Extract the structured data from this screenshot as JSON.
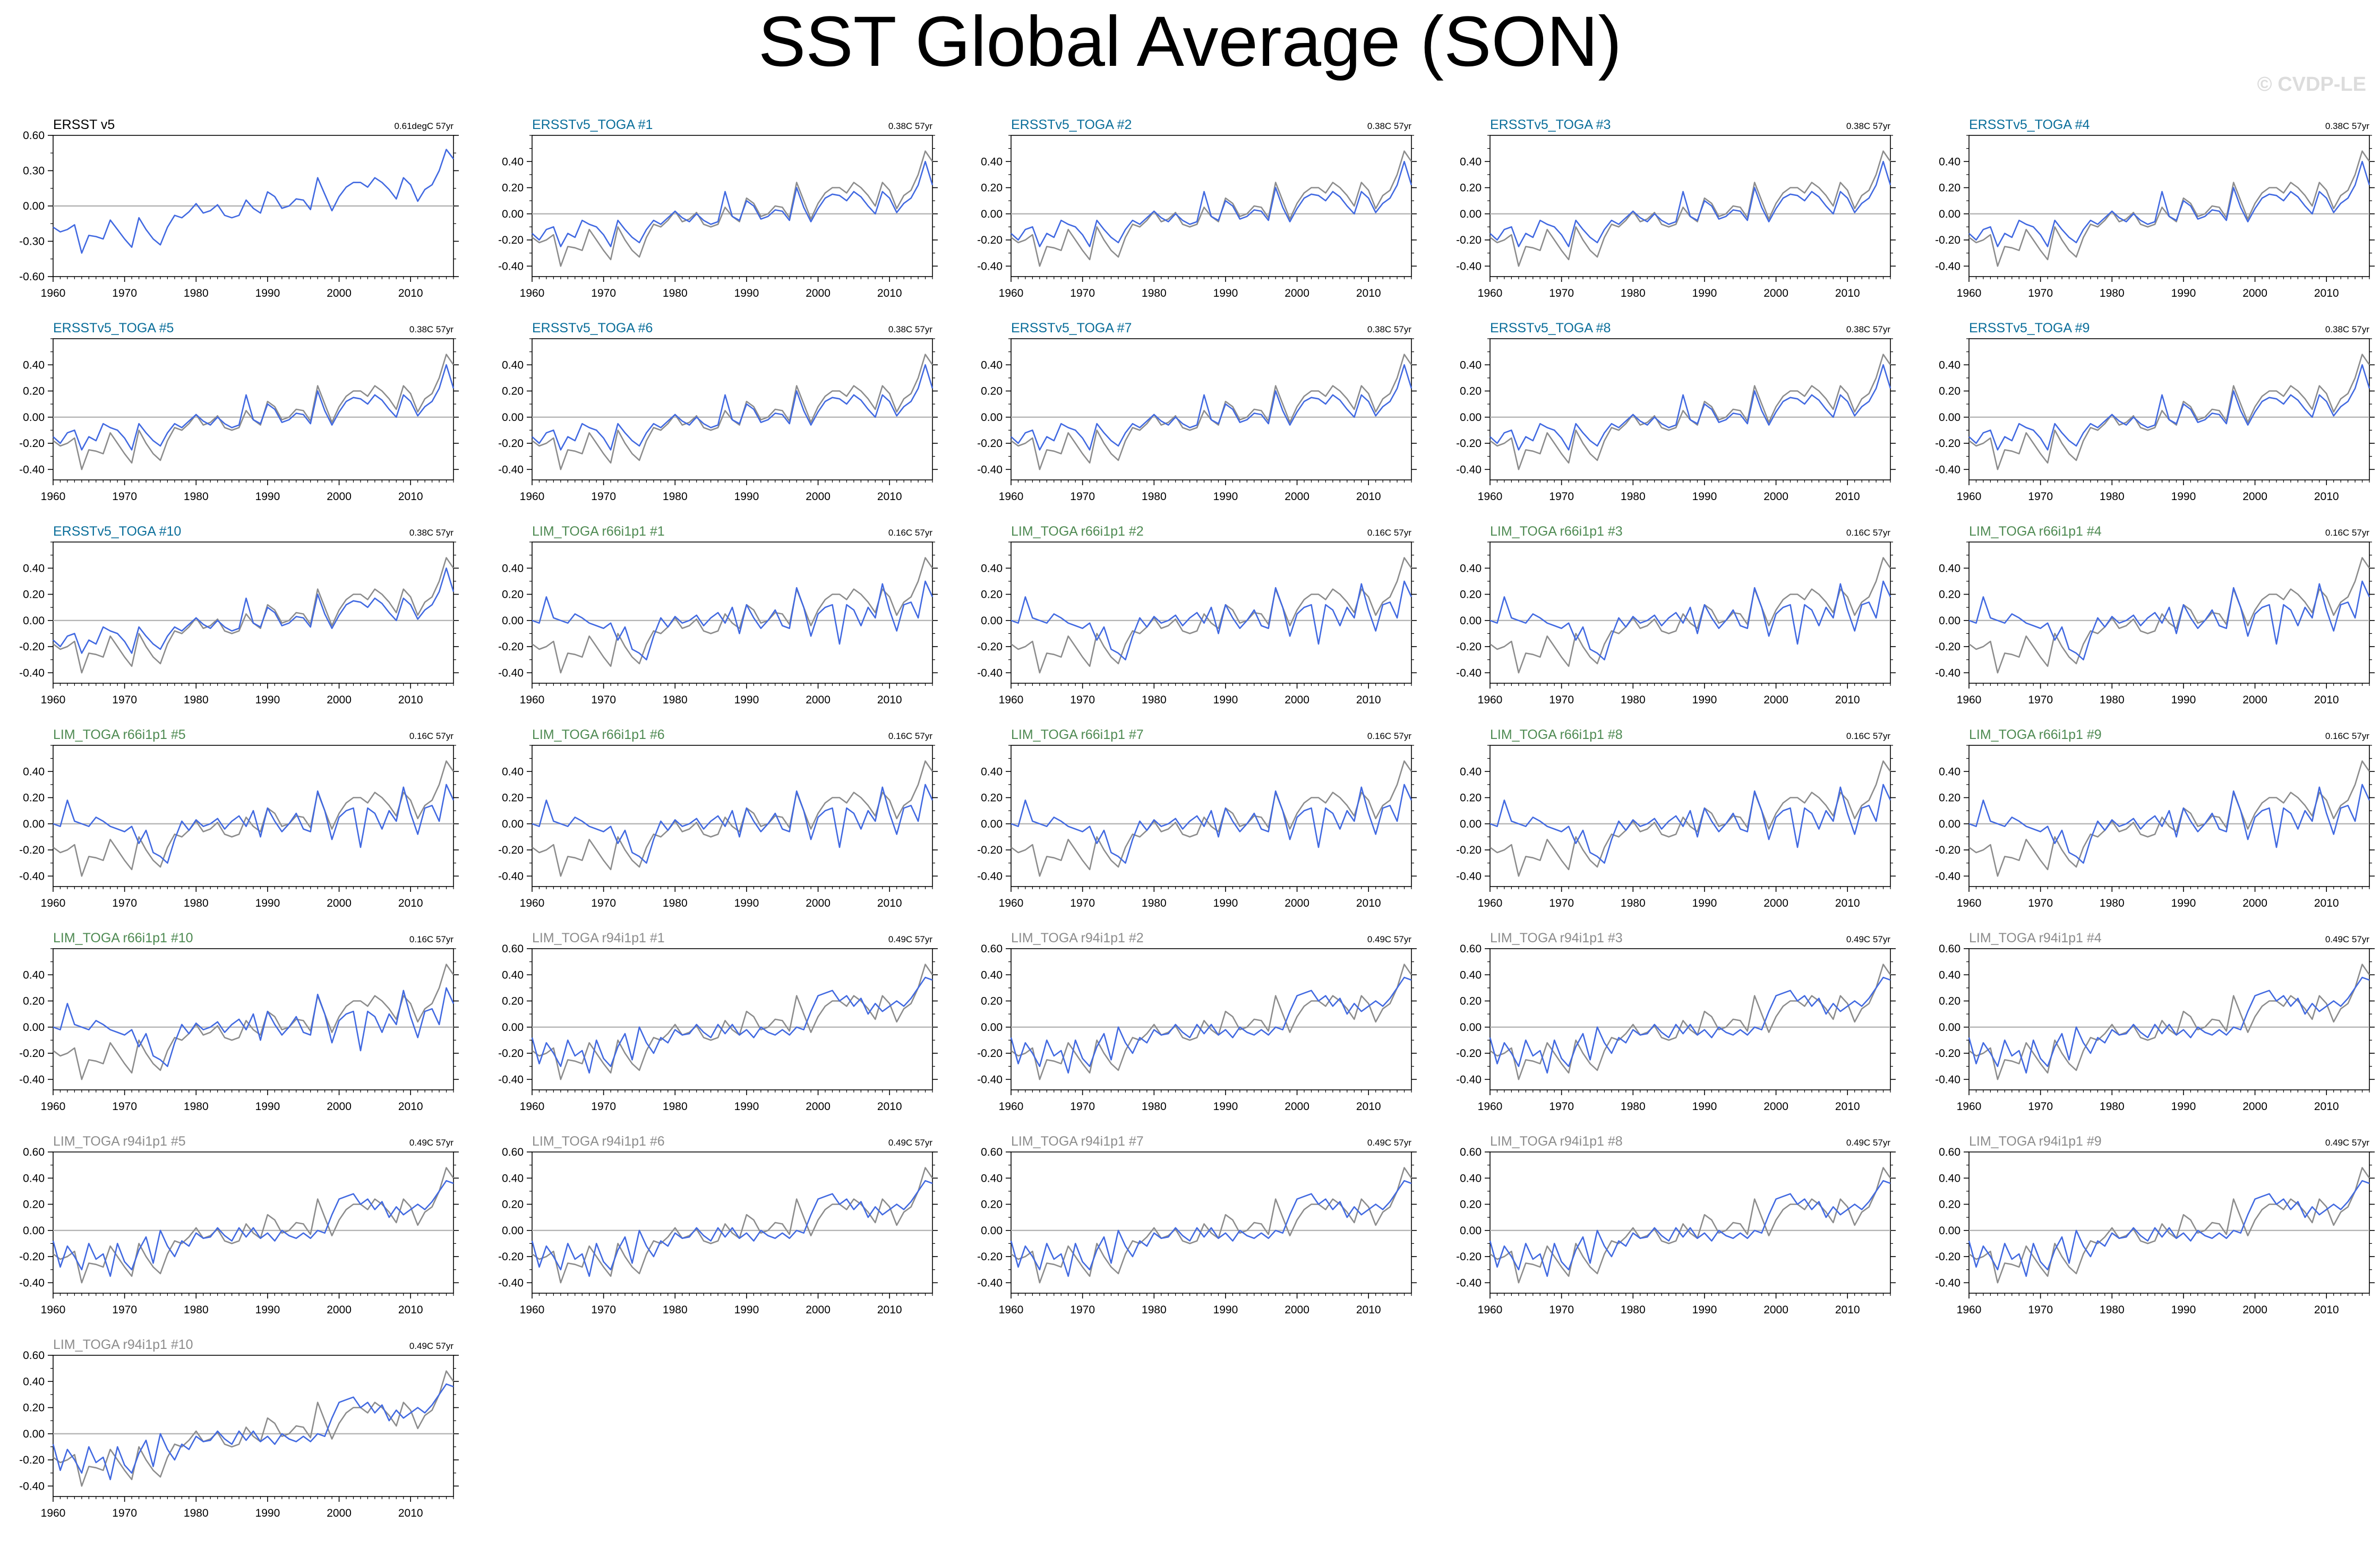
{
  "figure": {
    "title": "SST Global Average (SON)",
    "watermark": "© CVDP-LE"
  },
  "colors": {
    "model_line": "#4169e1",
    "obs_line": "#8c8c8c",
    "obs_only_line": "#4169e1",
    "zero_line": "#b4b4b4",
    "label_obs": "#000000",
    "label_ersst_toga": "#0a6e9a",
    "label_r66": "#4e8a52",
    "label_r94": "#8c8c8c"
  },
  "chart_data": {
    "type": "line",
    "layout": "small-multiples grid, 5 columns",
    "x": [
      1960,
      1961,
      1962,
      1963,
      1964,
      1965,
      1966,
      1967,
      1968,
      1969,
      1970,
      1971,
      1972,
      1973,
      1974,
      1975,
      1976,
      1977,
      1978,
      1979,
      1980,
      1981,
      1982,
      1983,
      1984,
      1985,
      1986,
      1987,
      1988,
      1989,
      1990,
      1991,
      1992,
      1993,
      1994,
      1995,
      1996,
      1997,
      1998,
      1999,
      2000,
      2001,
      2002,
      2003,
      2004,
      2005,
      2006,
      2007,
      2008,
      2009,
      2010,
      2011,
      2012,
      2013,
      2014,
      2015,
      2016
    ],
    "xticks": [
      "1960",
      "1970",
      "1980",
      "1990",
      "2000",
      "2010"
    ],
    "xlim": [
      1960,
      2016
    ],
    "observations": {
      "name": "ERSST v5",
      "values": [
        -0.18,
        -0.22,
        -0.2,
        -0.16,
        -0.4,
        -0.25,
        -0.26,
        -0.28,
        -0.12,
        -0.2,
        -0.28,
        -0.35,
        -0.1,
        -0.2,
        -0.28,
        -0.33,
        -0.18,
        -0.08,
        -0.1,
        -0.05,
        0.02,
        -0.06,
        -0.04,
        0.01,
        -0.08,
        -0.1,
        -0.08,
        0.05,
        -0.02,
        -0.06,
        0.12,
        0.08,
        -0.02,
        0.0,
        0.06,
        0.05,
        -0.03,
        0.24,
        0.1,
        -0.04,
        0.08,
        0.16,
        0.2,
        0.2,
        0.16,
        0.24,
        0.2,
        0.14,
        0.06,
        0.24,
        0.18,
        0.04,
        0.14,
        0.18,
        0.3,
        0.48,
        0.4
      ]
    },
    "panels": [
      {
        "label": "ERSST v5",
        "group": "obs",
        "trend": "0.61degC 57yr",
        "ylim": [
          -0.6,
          0.6
        ],
        "yticks": [
          "0.60",
          "0.30",
          "0.00",
          "-0.30",
          "-0.60"
        ]
      },
      {
        "label": "ERSSTv5_TOGA #1",
        "group": "ersst_toga",
        "trend": "0.38C 57yr",
        "ylim": [
          -0.48,
          0.6
        ],
        "yticks": [
          "0.40",
          "0.20",
          "0.00",
          "-0.20",
          "-0.40"
        ]
      },
      {
        "label": "ERSSTv5_TOGA #2",
        "group": "ersst_toga",
        "trend": "0.38C 57yr",
        "ylim": [
          -0.48,
          0.6
        ],
        "yticks": [
          "0.40",
          "0.20",
          "0.00",
          "-0.20",
          "-0.40"
        ]
      },
      {
        "label": "ERSSTv5_TOGA #3",
        "group": "ersst_toga",
        "trend": "0.38C 57yr",
        "ylim": [
          -0.48,
          0.6
        ],
        "yticks": [
          "0.40",
          "0.20",
          "0.00",
          "-0.20",
          "-0.40"
        ]
      },
      {
        "label": "ERSSTv5_TOGA #4",
        "group": "ersst_toga",
        "trend": "0.38C 57yr",
        "ylim": [
          -0.48,
          0.6
        ],
        "yticks": [
          "0.40",
          "0.20",
          "0.00",
          "-0.20",
          "-0.40"
        ]
      },
      {
        "label": "ERSSTv5_TOGA #5",
        "group": "ersst_toga",
        "trend": "0.38C 57yr",
        "ylim": [
          -0.48,
          0.6
        ],
        "yticks": [
          "0.40",
          "0.20",
          "0.00",
          "-0.20",
          "-0.40"
        ]
      },
      {
        "label": "ERSSTv5_TOGA #6",
        "group": "ersst_toga",
        "trend": "0.38C 57yr",
        "ylim": [
          -0.48,
          0.6
        ],
        "yticks": [
          "0.40",
          "0.20",
          "0.00",
          "-0.20",
          "-0.40"
        ]
      },
      {
        "label": "ERSSTv5_TOGA #7",
        "group": "ersst_toga",
        "trend": "0.38C 57yr",
        "ylim": [
          -0.48,
          0.6
        ],
        "yticks": [
          "0.40",
          "0.20",
          "0.00",
          "-0.20",
          "-0.40"
        ]
      },
      {
        "label": "ERSSTv5_TOGA #8",
        "group": "ersst_toga",
        "trend": "0.38C 57yr",
        "ylim": [
          -0.48,
          0.6
        ],
        "yticks": [
          "0.40",
          "0.20",
          "0.00",
          "-0.20",
          "-0.40"
        ]
      },
      {
        "label": "ERSSTv5_TOGA #9",
        "group": "ersst_toga",
        "trend": "0.38C 57yr",
        "ylim": [
          -0.48,
          0.6
        ],
        "yticks": [
          "0.40",
          "0.20",
          "0.00",
          "-0.20",
          "-0.40"
        ]
      },
      {
        "label": "ERSSTv5_TOGA #10",
        "group": "ersst_toga",
        "trend": "0.38C 57yr",
        "ylim": [
          -0.48,
          0.6
        ],
        "yticks": [
          "0.40",
          "0.20",
          "0.00",
          "-0.20",
          "-0.40"
        ]
      },
      {
        "label": "LIM_TOGA r66i1p1 #1",
        "group": "r66",
        "trend": "0.16C 57yr",
        "ylim": [
          -0.48,
          0.6
        ],
        "yticks": [
          "0.40",
          "0.20",
          "0.00",
          "-0.20",
          "-0.40"
        ]
      },
      {
        "label": "LIM_TOGA r66i1p1 #2",
        "group": "r66",
        "trend": "0.16C 57yr",
        "ylim": [
          -0.48,
          0.6
        ],
        "yticks": [
          "0.40",
          "0.20",
          "0.00",
          "-0.20",
          "-0.40"
        ]
      },
      {
        "label": "LIM_TOGA r66i1p1 #3",
        "group": "r66",
        "trend": "0.16C 57yr",
        "ylim": [
          -0.48,
          0.6
        ],
        "yticks": [
          "0.40",
          "0.20",
          "0.00",
          "-0.20",
          "-0.40"
        ]
      },
      {
        "label": "LIM_TOGA r66i1p1 #4",
        "group": "r66",
        "trend": "0.16C 57yr",
        "ylim": [
          -0.48,
          0.6
        ],
        "yticks": [
          "0.40",
          "0.20",
          "0.00",
          "-0.20",
          "-0.40"
        ]
      },
      {
        "label": "LIM_TOGA r66i1p1 #5",
        "group": "r66",
        "trend": "0.16C 57yr",
        "ylim": [
          -0.48,
          0.6
        ],
        "yticks": [
          "0.40",
          "0.20",
          "0.00",
          "-0.20",
          "-0.40"
        ]
      },
      {
        "label": "LIM_TOGA r66i1p1 #6",
        "group": "r66",
        "trend": "0.16C 57yr",
        "ylim": [
          -0.48,
          0.6
        ],
        "yticks": [
          "0.40",
          "0.20",
          "0.00",
          "-0.20",
          "-0.40"
        ]
      },
      {
        "label": "LIM_TOGA r66i1p1 #7",
        "group": "r66",
        "trend": "0.16C 57yr",
        "ylim": [
          -0.48,
          0.6
        ],
        "yticks": [
          "0.40",
          "0.20",
          "0.00",
          "-0.20",
          "-0.40"
        ]
      },
      {
        "label": "LIM_TOGA r66i1p1 #8",
        "group": "r66",
        "trend": "0.16C 57yr",
        "ylim": [
          -0.48,
          0.6
        ],
        "yticks": [
          "0.40",
          "0.20",
          "0.00",
          "-0.20",
          "-0.40"
        ]
      },
      {
        "label": "LIM_TOGA r66i1p1 #9",
        "group": "r66",
        "trend": "0.16C 57yr",
        "ylim": [
          -0.48,
          0.6
        ],
        "yticks": [
          "0.40",
          "0.20",
          "0.00",
          "-0.20",
          "-0.40"
        ]
      },
      {
        "label": "LIM_TOGA r66i1p1 #10",
        "group": "r66",
        "trend": "0.16C 57yr",
        "ylim": [
          -0.48,
          0.6
        ],
        "yticks": [
          "0.40",
          "0.20",
          "0.00",
          "-0.20",
          "-0.40"
        ]
      },
      {
        "label": "LIM_TOGA r94i1p1 #1",
        "group": "r94",
        "trend": "0.49C 57yr",
        "ylim": [
          -0.48,
          0.6
        ],
        "yticks": [
          "0.60",
          "0.40",
          "0.20",
          "0.00",
          "-0.20",
          "-0.40"
        ]
      },
      {
        "label": "LIM_TOGA r94i1p1 #2",
        "group": "r94",
        "trend": "0.49C 57yr",
        "ylim": [
          -0.48,
          0.6
        ],
        "yticks": [
          "0.60",
          "0.40",
          "0.20",
          "0.00",
          "-0.20",
          "-0.40"
        ]
      },
      {
        "label": "LIM_TOGA r94i1p1 #3",
        "group": "r94",
        "trend": "0.49C 57yr",
        "ylim": [
          -0.48,
          0.6
        ],
        "yticks": [
          "0.60",
          "0.40",
          "0.20",
          "0.00",
          "-0.20",
          "-0.40"
        ]
      },
      {
        "label": "LIM_TOGA r94i1p1 #4",
        "group": "r94",
        "trend": "0.49C 57yr",
        "ylim": [
          -0.48,
          0.6
        ],
        "yticks": [
          "0.60",
          "0.40",
          "0.20",
          "0.00",
          "-0.20",
          "-0.40"
        ]
      },
      {
        "label": "LIM_TOGA r94i1p1 #5",
        "group": "r94",
        "trend": "0.49C 57yr",
        "ylim": [
          -0.48,
          0.6
        ],
        "yticks": [
          "0.60",
          "0.40",
          "0.20",
          "0.00",
          "-0.20",
          "-0.40"
        ]
      },
      {
        "label": "LIM_TOGA r94i1p1 #6",
        "group": "r94",
        "trend": "0.49C 57yr",
        "ylim": [
          -0.48,
          0.6
        ],
        "yticks": [
          "0.60",
          "0.40",
          "0.20",
          "0.00",
          "-0.20",
          "-0.40"
        ]
      },
      {
        "label": "LIM_TOGA r94i1p1 #7",
        "group": "r94",
        "trend": "0.49C 57yr",
        "ylim": [
          -0.48,
          0.6
        ],
        "yticks": [
          "0.60",
          "0.40",
          "0.20",
          "0.00",
          "-0.20",
          "-0.40"
        ]
      },
      {
        "label": "LIM_TOGA r94i1p1 #8",
        "group": "r94",
        "trend": "0.49C 57yr",
        "ylim": [
          -0.48,
          0.6
        ],
        "yticks": [
          "0.60",
          "0.40",
          "0.20",
          "0.00",
          "-0.20",
          "-0.40"
        ]
      },
      {
        "label": "LIM_TOGA r94i1p1 #9",
        "group": "r94",
        "trend": "0.49C 57yr",
        "ylim": [
          -0.48,
          0.6
        ],
        "yticks": [
          "0.60",
          "0.40",
          "0.20",
          "0.00",
          "-0.20",
          "-0.40"
        ]
      },
      {
        "label": "LIM_TOGA r94i1p1 #10",
        "group": "r94",
        "trend": "0.49C 57yr",
        "ylim": [
          -0.48,
          0.6
        ],
        "yticks": [
          "0.60",
          "0.40",
          "0.20",
          "0.00",
          "-0.20",
          "-0.40"
        ]
      }
    ],
    "model_series": {
      "ersst_toga": [
        -0.15,
        -0.2,
        -0.12,
        -0.1,
        -0.25,
        -0.15,
        -0.18,
        -0.05,
        -0.08,
        -0.1,
        -0.16,
        -0.25,
        -0.05,
        -0.12,
        -0.18,
        -0.22,
        -0.12,
        -0.05,
        -0.08,
        -0.03,
        0.02,
        -0.03,
        -0.06,
        0.0,
        -0.05,
        -0.08,
        -0.06,
        0.17,
        -0.02,
        -0.05,
        0.1,
        0.06,
        -0.04,
        -0.02,
        0.03,
        0.02,
        -0.05,
        0.2,
        0.05,
        -0.06,
        0.04,
        0.12,
        0.15,
        0.14,
        0.1,
        0.17,
        0.13,
        0.06,
        0.0,
        0.17,
        0.12,
        0.01,
        0.08,
        0.12,
        0.22,
        0.4,
        0.22
      ],
      "r66": [
        0.0,
        -0.02,
        0.18,
        0.02,
        0.0,
        -0.02,
        0.05,
        0.02,
        -0.02,
        -0.04,
        -0.06,
        -0.02,
        -0.15,
        -0.05,
        -0.22,
        -0.25,
        -0.3,
        -0.12,
        0.02,
        -0.05,
        0.03,
        -0.02,
        0.0,
        0.04,
        -0.04,
        0.02,
        0.06,
        -0.02,
        0.1,
        -0.1,
        0.12,
        0.02,
        -0.06,
        0.0,
        0.08,
        -0.04,
        -0.06,
        0.25,
        0.1,
        -0.12,
        0.05,
        0.1,
        0.12,
        -0.18,
        0.12,
        0.08,
        -0.04,
        0.1,
        0.02,
        0.28,
        0.08,
        -0.08,
        0.12,
        0.14,
        0.02,
        0.3,
        0.18
      ],
      "r94": [
        -0.08,
        -0.28,
        -0.12,
        -0.2,
        -0.3,
        -0.1,
        -0.22,
        -0.18,
        -0.35,
        -0.1,
        -0.24,
        -0.3,
        -0.15,
        -0.05,
        -0.25,
        0.0,
        -0.12,
        -0.2,
        -0.08,
        -0.12,
        -0.02,
        -0.06,
        -0.05,
        0.02,
        -0.04,
        -0.08,
        0.02,
        -0.05,
        0.02,
        -0.06,
        -0.02,
        -0.08,
        0.0,
        -0.04,
        -0.06,
        -0.02,
        -0.06,
        0.0,
        -0.02,
        0.12,
        0.24,
        0.26,
        0.28,
        0.2,
        0.24,
        0.16,
        0.22,
        0.1,
        0.18,
        0.12,
        0.16,
        0.2,
        0.16,
        0.22,
        0.3,
        0.38,
        0.36
      ]
    }
  }
}
